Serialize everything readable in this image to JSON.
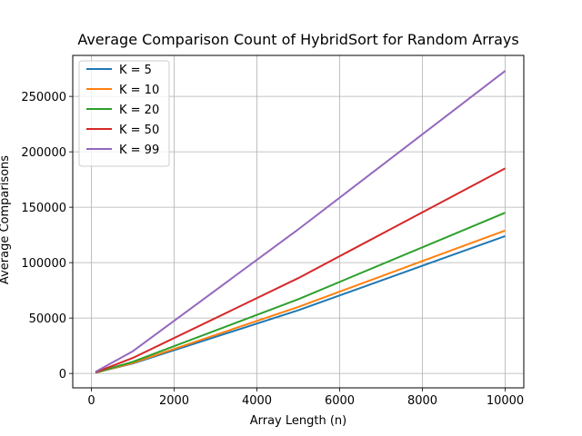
{
  "chart_data": {
    "type": "line",
    "title": "Average Comparison Count of HybridSort for Random Arrays",
    "xlabel": "Array Length (n)",
    "ylabel": "Average Comparisons",
    "xlim": [
      -450,
      10450
    ],
    "ylim": [
      -13000,
      287000
    ],
    "x_ticks": [
      0,
      2000,
      4000,
      6000,
      8000,
      10000
    ],
    "x_tick_labels": [
      "0",
      "2000",
      "4000",
      "6000",
      "8000",
      "10000"
    ],
    "y_ticks": [
      0,
      50000,
      100000,
      150000,
      200000,
      250000
    ],
    "y_tick_labels": [
      "0",
      "50000",
      "100000",
      "150000",
      "200000",
      "250000"
    ],
    "grid": true,
    "legend_position": "top-left",
    "x": [
      100,
      1000,
      5000,
      10000
    ],
    "series": [
      {
        "name": "K = 5",
        "color": "#1f77b4",
        "values": [
          660,
          9000,
          57000,
          124000
        ]
      },
      {
        "name": "K = 10",
        "color": "#ff7f0e",
        "values": [
          700,
          9500,
          60000,
          129000
        ]
      },
      {
        "name": "K = 20",
        "color": "#2ca02c",
        "values": [
          800,
          10500,
          67000,
          145000
        ]
      },
      {
        "name": "K = 50",
        "color": "#d62728",
        "values": [
          1000,
          14000,
          86000,
          185000
        ]
      },
      {
        "name": "K = 99",
        "color": "#9467bd",
        "values": [
          1400,
          20000,
          130000,
          273000
        ]
      }
    ]
  }
}
